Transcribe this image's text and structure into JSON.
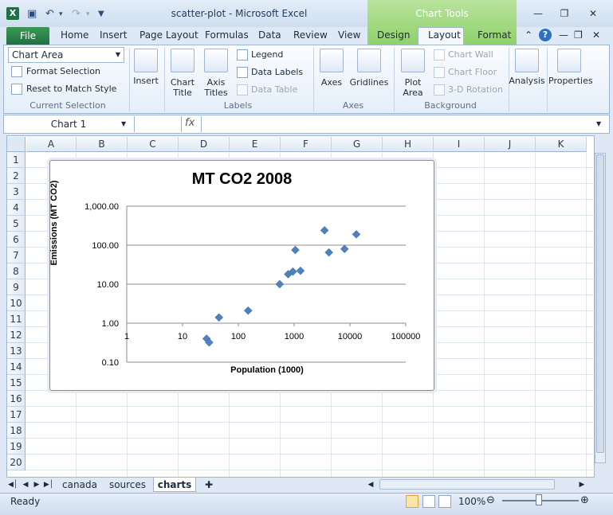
{
  "window": {
    "title": "scatter-plot  -  Microsoft Excel",
    "app_icon": "excel-icon",
    "context_tab_group": "Chart Tools"
  },
  "ribbon": {
    "tabs": [
      "File",
      "Home",
      "Insert",
      "Page Layout",
      "Formulas",
      "Data",
      "Review",
      "View",
      "Design",
      "Layout",
      "Format"
    ],
    "active_tab": "Layout",
    "current_selection": {
      "selected": "Chart Area",
      "format_selection": "Format Selection",
      "reset_label": "Reset to Match Style",
      "group_label": "Current Selection"
    },
    "insert_label": "Insert",
    "labels_group": {
      "chart_title": [
        "Chart",
        "Title"
      ],
      "axis_titles": [
        "Axis",
        "Titles"
      ],
      "legend": "Legend",
      "data_labels": "Data Labels",
      "data_table": "Data Table",
      "group_label": "Labels"
    },
    "axes_group": {
      "axes": "Axes",
      "gridlines": "Gridlines",
      "group_label": "Axes"
    },
    "background_group": {
      "plot_area": [
        "Plot",
        "Area"
      ],
      "chart_wall": "Chart Wall",
      "chart_floor": "Chart Floor",
      "rotation": "3-D Rotation",
      "group_label": "Background"
    },
    "analysis_label": "Analysis",
    "properties_label": "Properties"
  },
  "formula_bar": {
    "name_box": "Chart 1",
    "fx": "fx",
    "value": ""
  },
  "grid": {
    "columns": [
      "A",
      "B",
      "C",
      "D",
      "E",
      "F",
      "G",
      "H",
      "I",
      "J",
      "K"
    ],
    "rows": [
      "1",
      "2",
      "3",
      "4",
      "5",
      "6",
      "7",
      "8",
      "9",
      "10",
      "11",
      "12",
      "13",
      "14",
      "15",
      "16",
      "17",
      "18",
      "19",
      "20"
    ]
  },
  "chart_data": {
    "type": "scatter",
    "title": "MT CO2 2008",
    "xlabel": "Population  (1000)",
    "ylabel": "Emissions  (MT CO2)",
    "x_scale": "log",
    "y_scale": "log",
    "xlim": [
      1,
      100000
    ],
    "ylim": [
      0.1,
      1000
    ],
    "x_ticks": [
      "1",
      "10",
      "100",
      "1000",
      "10000",
      "100000"
    ],
    "y_ticks": [
      "0.10",
      "1.00",
      "10.00",
      "100.00",
      "1,000.00"
    ],
    "grid": "horizontal major",
    "marker": "diamond",
    "color": "#4f81bd",
    "x": [
      27,
      30,
      45,
      150,
      550,
      780,
      950,
      1050,
      1300,
      3500,
      4200,
      8000,
      13000
    ],
    "y": [
      0.4,
      0.32,
      1.4,
      2.1,
      10,
      18,
      21,
      75,
      22,
      240,
      65,
      80,
      190
    ]
  },
  "sheets": {
    "tabs": [
      "canada",
      "sources",
      "charts"
    ],
    "active": "charts"
  },
  "status": {
    "ready": "Ready",
    "zoom": "100%"
  }
}
